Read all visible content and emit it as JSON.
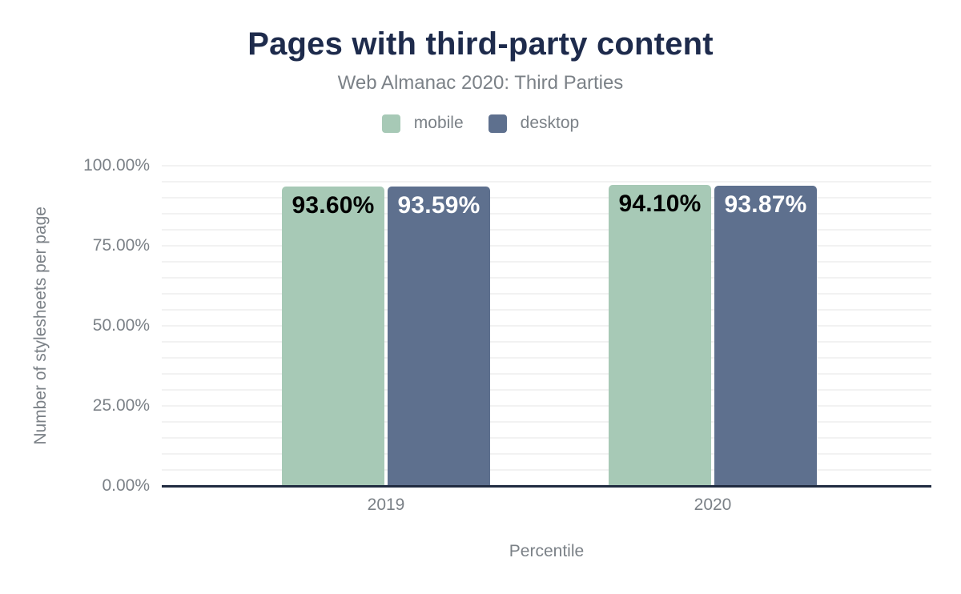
{
  "chart_data": {
    "type": "bar",
    "title": "Pages with third-party content",
    "subtitle": "Web Almanac 2020: Third Parties",
    "categories": [
      "2019",
      "2020"
    ],
    "series": [
      {
        "name": "mobile",
        "color": "#a7c9b6",
        "value_text_color": "#000000",
        "values": [
          93.6,
          94.1
        ],
        "value_labels": [
          "93.60%",
          "94.10%"
        ]
      },
      {
        "name": "desktop",
        "color": "#5e708e",
        "value_text_color": "#ffffff",
        "values": [
          93.59,
          93.87
        ],
        "value_labels": [
          "93.59%",
          "93.87%"
        ]
      }
    ],
    "xlabel": "Percentile",
    "ylabel": "Number of stylesheets per page",
    "ylim": [
      0,
      100
    ],
    "yticks": [
      {
        "value": 0,
        "label": "0.00%"
      },
      {
        "value": 25,
        "label": "25.00%"
      },
      {
        "value": 50,
        "label": "50.00%"
      },
      {
        "value": 75,
        "label": "75.00%"
      },
      {
        "value": 100,
        "label": "100.00%"
      }
    ],
    "grid": {
      "visible": true,
      "step": 5,
      "color": "#f2f2f2"
    },
    "legend_position": "top",
    "colors": {
      "title": "#1e2b4c",
      "muted_text": "#7b8187",
      "axis_line": "#202b40",
      "background": "#ffffff"
    }
  }
}
